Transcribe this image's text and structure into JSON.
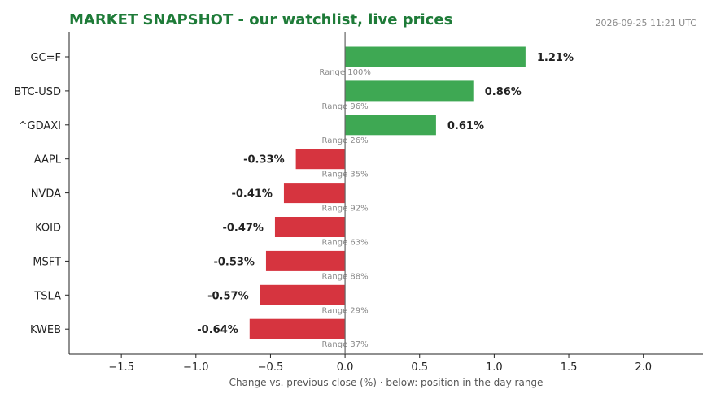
{
  "header": {
    "title": "MARKET SNAPSHOT - our watchlist, live prices",
    "timestamp": "2026-09-25 11:21 UTC"
  },
  "colors": {
    "title": "#1e7b38",
    "positive": "#3ea853",
    "negative": "#d6343f",
    "zero_line": "#666666"
  },
  "chart_data": {
    "type": "bar",
    "orientation": "horizontal",
    "title": "MARKET SNAPSHOT - our watchlist, live prices",
    "xlabel": "Change vs. previous close (%)  ·  below: position in the day range",
    "ylabel": "",
    "xlim": [
      -1.85,
      2.4
    ],
    "xticks": [
      -1.5,
      -1.0,
      -0.5,
      0.0,
      0.5,
      1.0,
      1.5,
      2.0
    ],
    "xtick_labels": [
      "−1.5",
      "−1.0",
      "−0.5",
      "0.0",
      "0.5",
      "1.0",
      "1.5",
      "2.0"
    ],
    "grid": false,
    "categories": [
      "GC=F",
      "BTC-USD",
      "^GDAXI",
      "AAPL",
      "NVDA",
      "KOID",
      "MSFT",
      "TSLA",
      "KWEB"
    ],
    "values": [
      1.21,
      0.86,
      0.61,
      -0.33,
      -0.41,
      -0.47,
      -0.53,
      -0.57,
      -0.64
    ],
    "value_labels": [
      "1.21%",
      "0.86%",
      "0.61%",
      "-0.33%",
      "-0.41%",
      "-0.47%",
      "-0.53%",
      "-0.57%",
      "-0.64%"
    ],
    "range_labels": [
      "Range 100%",
      "Range 96%",
      "Range 26%",
      "Range 35%",
      "Range 92%",
      "Range 63%",
      "Range 88%",
      "Range 29%",
      "Range 37%"
    ]
  }
}
